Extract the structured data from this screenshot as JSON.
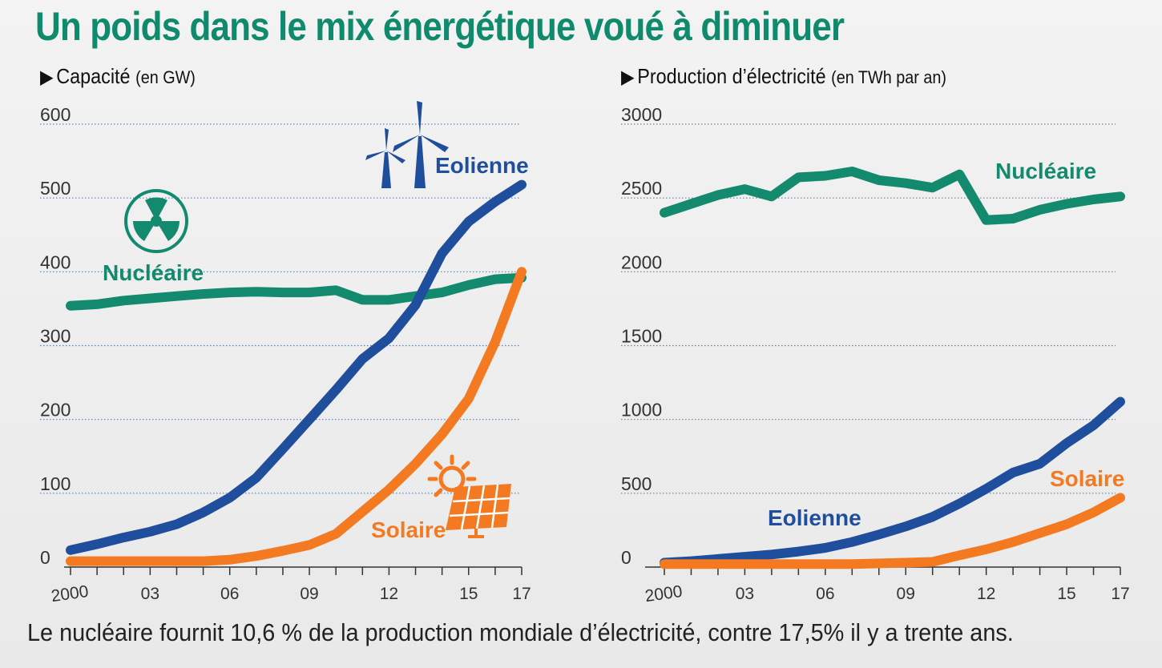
{
  "title": "Un poids dans le mix énergétique voué à diminuer",
  "caption": "Le nucléaire fournit 10,6 % de la production mondiale d’électricité, contre 17,5% il y a trente ans.",
  "colors": {
    "title": "#0f8a6d",
    "nucleaire": "#138a6e",
    "eolienne": "#1f4f9c",
    "solaire": "#f47a22",
    "grid": "#5a7fb0"
  },
  "icons": [
    "radiation-icon",
    "wind-turbine-icon",
    "sun-icon",
    "solar-panel-icon"
  ],
  "chart_data": [
    {
      "type": "line",
      "title": "Capacité",
      "unit": "(en GW)",
      "ylim": [
        0,
        600
      ],
      "yticks": [
        "0",
        "100",
        "200",
        "300",
        "400",
        "500",
        "600"
      ],
      "xlim": [
        2000,
        2017
      ],
      "xtick_labels": [
        "2000",
        "03",
        "06",
        "09",
        "12",
        "15",
        "17"
      ],
      "series": [
        {
          "name": "Nucléaire",
          "key": "nucleaire",
          "x": [
            2000,
            2001,
            2002,
            2003,
            2004,
            2005,
            2006,
            2007,
            2008,
            2009,
            2010,
            2011,
            2012,
            2013,
            2014,
            2015,
            2016,
            2017
          ],
          "values": [
            354,
            356,
            361,
            364,
            367,
            370,
            372,
            373,
            372,
            372,
            375,
            362,
            362,
            367,
            372,
            382,
            390,
            392
          ]
        },
        {
          "name": "Eolienne",
          "key": "eolienne",
          "x": [
            2000,
            2001,
            2002,
            2003,
            2004,
            2005,
            2006,
            2007,
            2008,
            2009,
            2010,
            2011,
            2012,
            2013,
            2014,
            2015,
            2016,
            2017
          ],
          "values": [
            23,
            31,
            40,
            48,
            58,
            74,
            94,
            121,
            160,
            200,
            240,
            282,
            310,
            355,
            425,
            468,
            495,
            518
          ]
        },
        {
          "name": "Solaire",
          "key": "solaire",
          "x": [
            2000,
            2001,
            2002,
            2003,
            2004,
            2005,
            2006,
            2007,
            2008,
            2009,
            2010,
            2011,
            2012,
            2013,
            2014,
            2015,
            2016,
            2017
          ],
          "values": [
            8,
            8,
            8,
            8,
            8,
            8,
            10,
            15,
            22,
            30,
            45,
            75,
            105,
            140,
            180,
            228,
            305,
            400
          ]
        }
      ]
    },
    {
      "type": "line",
      "title": "Production d’électricité",
      "unit": "(en TWh par an)",
      "ylim": [
        0,
        3000
      ],
      "yticks": [
        "0",
        "500",
        "1000",
        "1500",
        "2000",
        "2500",
        "3000"
      ],
      "xlim": [
        2000,
        2017
      ],
      "xtick_labels": [
        "2000",
        "03",
        "06",
        "09",
        "12",
        "15",
        "17"
      ],
      "series": [
        {
          "name": "Nucléaire",
          "key": "nucleaire",
          "x": [
            2000,
            2001,
            2002,
            2003,
            2004,
            2005,
            2006,
            2007,
            2008,
            2009,
            2010,
            2011,
            2012,
            2013,
            2014,
            2015,
            2016,
            2017
          ],
          "values": [
            2400,
            2460,
            2520,
            2560,
            2510,
            2640,
            2650,
            2680,
            2620,
            2600,
            2570,
            2660,
            2350,
            2360,
            2420,
            2460,
            2490,
            2510
          ]
        },
        {
          "name": "Eolienne",
          "key": "eolienne",
          "x": [
            2000,
            2001,
            2002,
            2003,
            2004,
            2005,
            2006,
            2007,
            2008,
            2009,
            2010,
            2011,
            2012,
            2013,
            2014,
            2015,
            2016,
            2017
          ],
          "values": [
            30,
            40,
            55,
            70,
            85,
            105,
            130,
            170,
            220,
            275,
            340,
            430,
            530,
            640,
            700,
            840,
            960,
            1120
          ]
        },
        {
          "name": "Solaire",
          "key": "solaire",
          "x": [
            2000,
            2001,
            2002,
            2003,
            2004,
            2005,
            2006,
            2007,
            2008,
            2009,
            2010,
            2011,
            2012,
            2013,
            2014,
            2015,
            2016,
            2017
          ],
          "values": [
            20,
            20,
            20,
            20,
            20,
            20,
            20,
            20,
            25,
            30,
            35,
            80,
            120,
            170,
            230,
            290,
            370,
            470
          ]
        }
      ]
    }
  ]
}
